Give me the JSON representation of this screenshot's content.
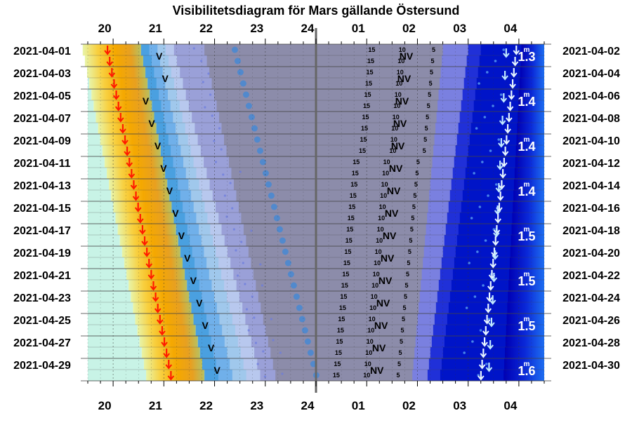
{
  "chart_data": {
    "type": "heatmap",
    "title": "Visibilitetsdiagram för Mars gällande Östersund",
    "x_tick_labels": [
      "20",
      "21",
      "22",
      "23",
      "24",
      "01",
      "02",
      "03",
      "04"
    ],
    "x_ticks_hours": [
      20,
      21,
      22,
      23,
      24,
      25,
      26,
      27,
      28
    ],
    "x_range_hours": [
      19.5,
      28.5
    ],
    "midnight_line_hour": 24,
    "left_date_labels": [
      "2021-04-01",
      "2021-04-03",
      "2021-04-05",
      "2021-04-07",
      "2021-04-09",
      "2021-04-11",
      "2021-04-13",
      "2021-04-15",
      "2021-04-17",
      "2021-04-19",
      "2021-04-21",
      "2021-04-23",
      "2021-04-25",
      "2021-04-27",
      "2021-04-29"
    ],
    "right_date_labels": [
      "2021-04-02",
      "2021-04-04",
      "2021-04-06",
      "2021-04-08",
      "2021-04-10",
      "2021-04-12",
      "2021-04-14",
      "2021-04-16",
      "2021-04-18",
      "2021-04-20",
      "2021-04-22",
      "2021-04-24",
      "2021-04-26",
      "2021-04-28",
      "2021-04-30"
    ],
    "rows": 30,
    "sunset_hour": {
      "start": 20.0,
      "end": 21.25
    },
    "mars_set_hour": {
      "start": 28.05,
      "end": 27.7
    },
    "nightmost_hour": {
      "start": 24.0,
      "end": 24.3
    },
    "night_bands": {
      "civil_dusk_end": {
        "start": 21.2,
        "end": 22.9
      },
      "dark_start": {
        "start": 21.8,
        "end": 23.2
      },
      "dark_end": {
        "start": 26.5,
        "end": 25.9
      },
      "civil_dawn_start": {
        "start": 27.0,
        "end": 26.2
      }
    },
    "magnitude_labels": [
      {
        "row": 0,
        "mag": "1.3"
      },
      {
        "row": 4,
        "mag": "1.4"
      },
      {
        "row": 8,
        "mag": "1.4"
      },
      {
        "row": 12,
        "mag": "1.4"
      },
      {
        "row": 16,
        "mag": "1.5"
      },
      {
        "row": 20,
        "mag": "1.5"
      },
      {
        "row": 24,
        "mag": "1.5"
      },
      {
        "row": 28,
        "mag": "1.6"
      }
    ],
    "magnitude_superscript": "m",
    "band_labels": {
      "v": "V",
      "nv": "NV"
    },
    "sun_depression_labels": [
      "15",
      "10",
      "5"
    ],
    "colors": {
      "day": "#c8f3e6",
      "sunset_orange": "#f5a800",
      "twilight_light": "#a0c8ec",
      "night_grey": "#8c8caa",
      "dawn_blue": "#0014c8",
      "arrow_red": "#ff1a00",
      "arrow_white": "#e8f6ff",
      "grid": "#444444"
    }
  }
}
